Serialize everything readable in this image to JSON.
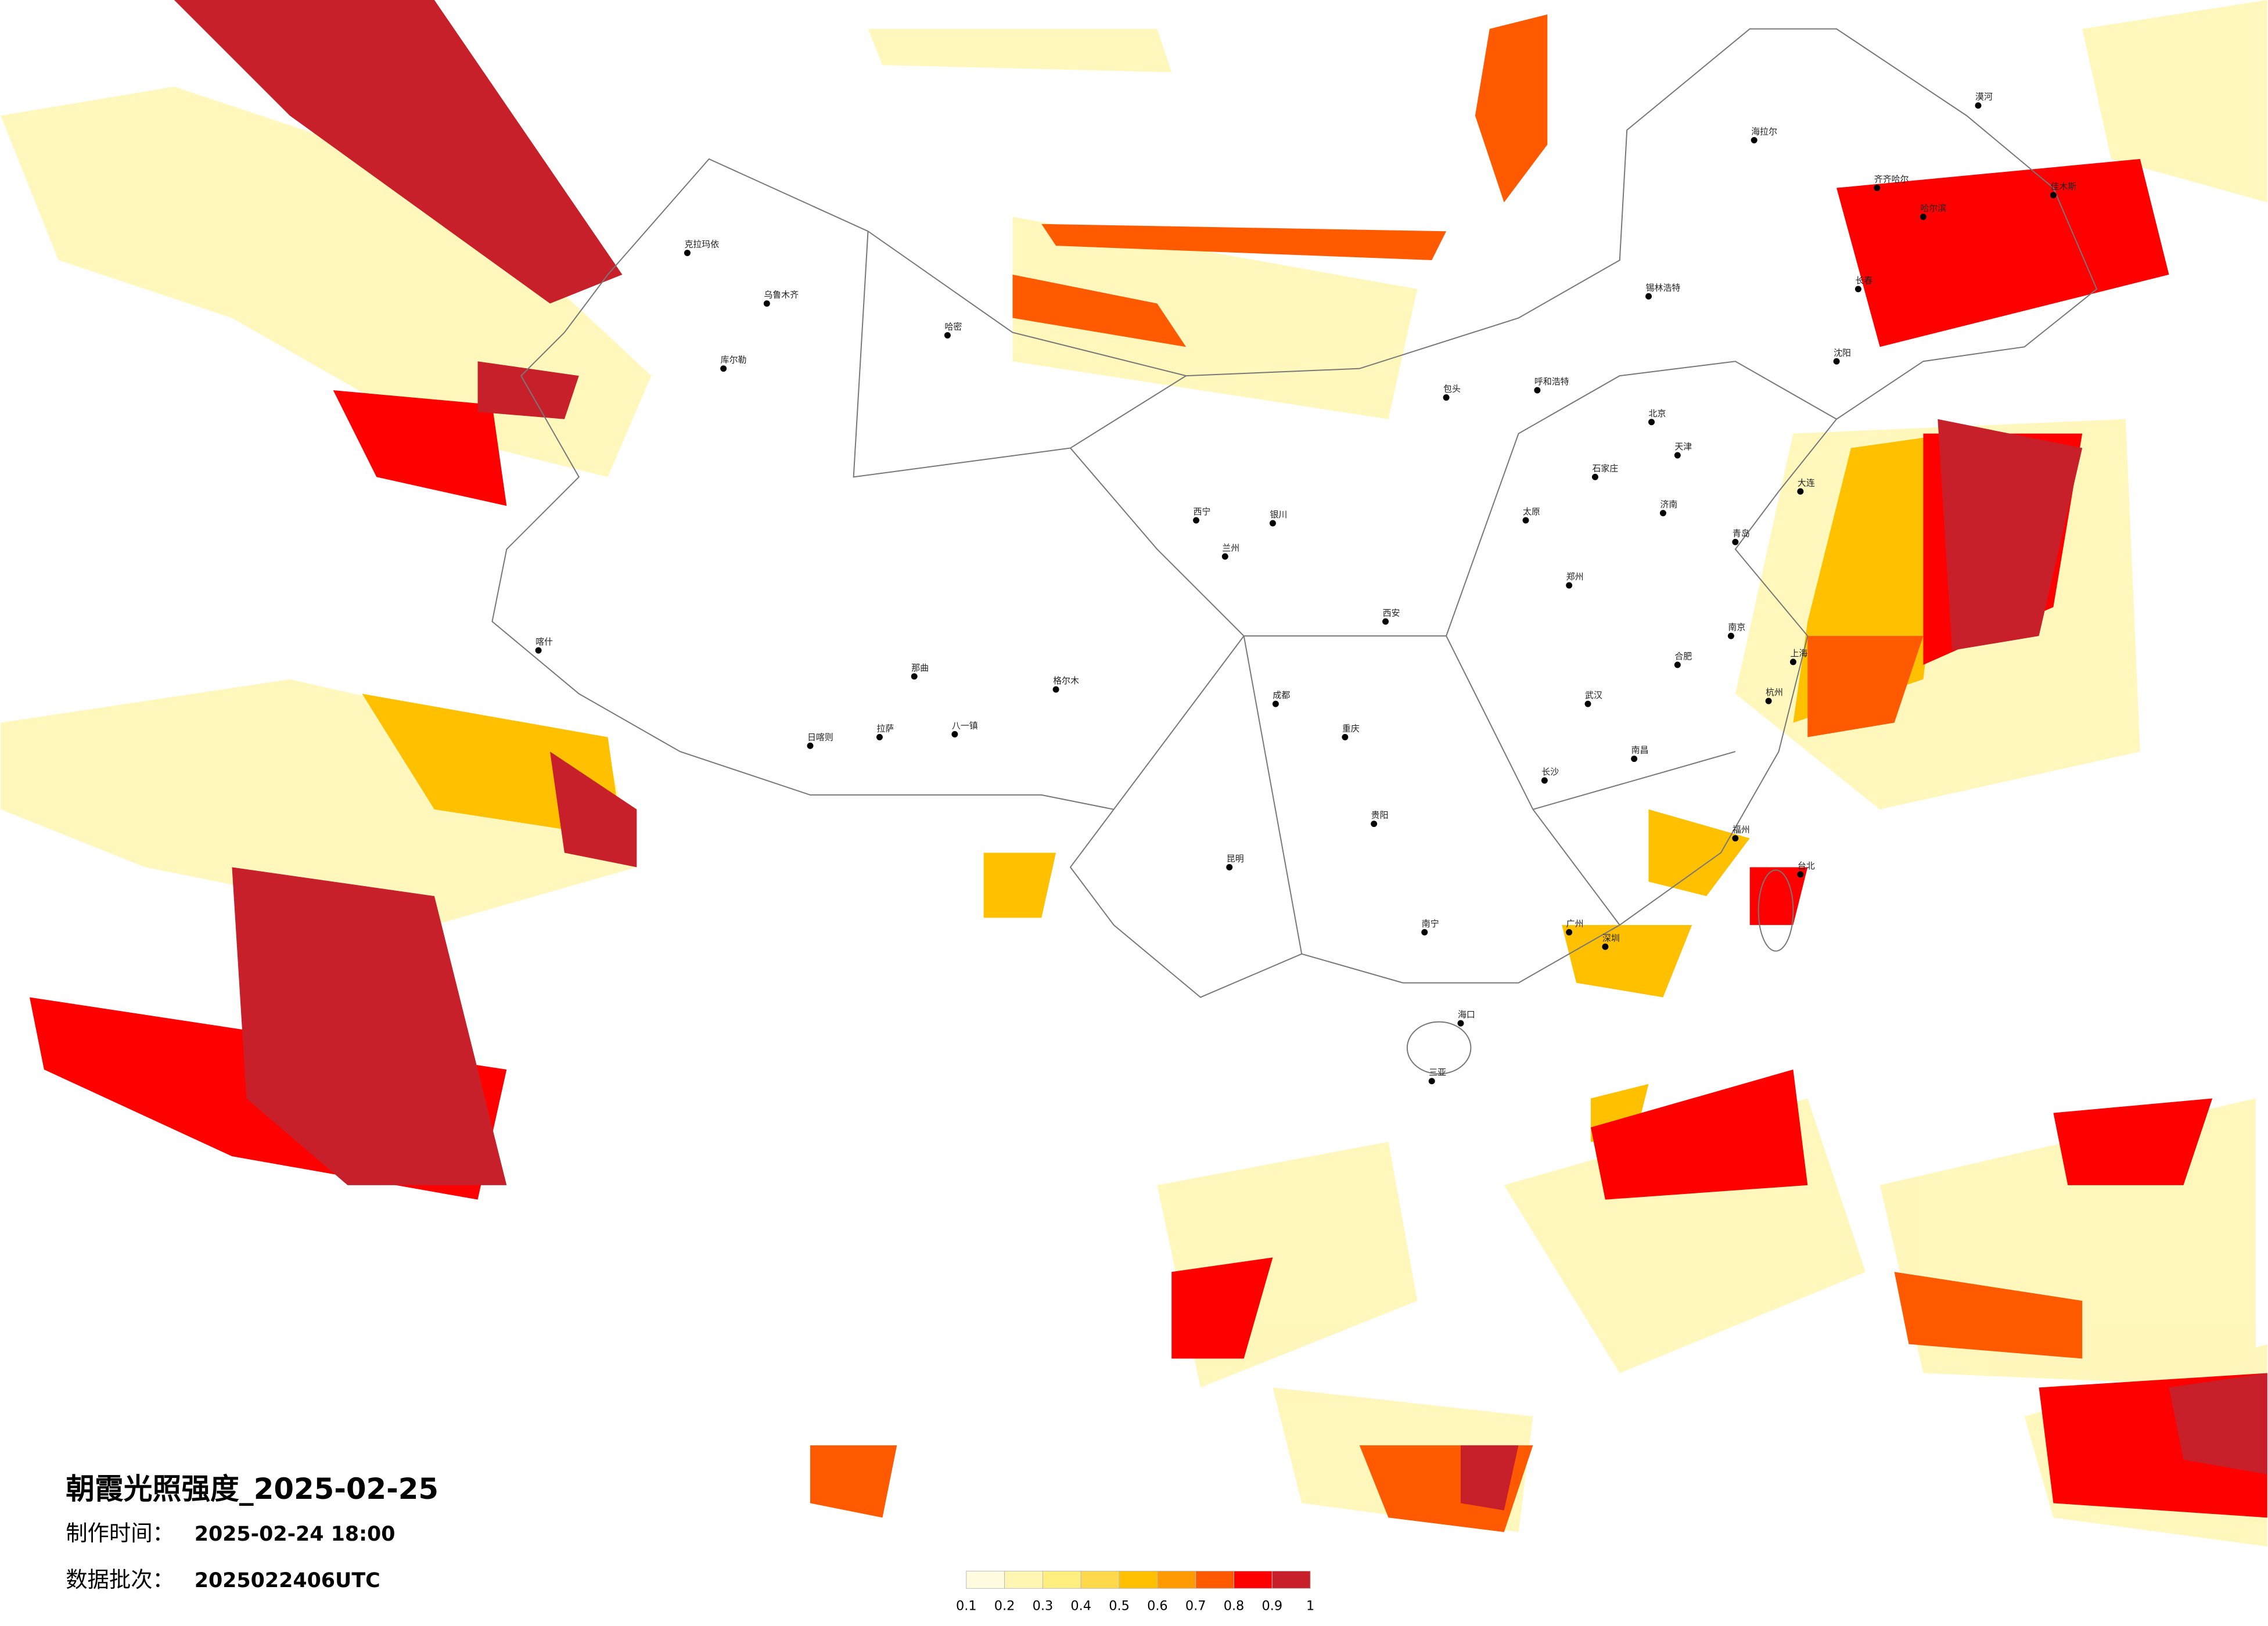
{
  "header": {
    "title": "朝霞光照强度_2025-02-25",
    "made_label": "制作时间：",
    "made_value": "2025-02-24 18:00",
    "batch_label": "数据批次：",
    "batch_value": "2025022406UTC"
  },
  "legend": {
    "ticks": [
      0.1,
      0.2,
      0.3,
      0.4,
      0.5,
      0.6,
      0.7,
      0.8,
      0.9,
      1
    ],
    "colors": [
      "#fffbe0",
      "#fff6b4",
      "#ffee80",
      "#ffd84c",
      "#ffc000",
      "#ff9a00",
      "#ff5a00",
      "#ff0000",
      "#c8202a"
    ]
  },
  "cities": [
    "克拉玛依",
    "乌鲁木齐",
    "哈密",
    "库尔勒",
    "喀什",
    "拉萨",
    "日喀则",
    "八一镇",
    "那曲",
    "格尔木",
    "西宁",
    "兰州",
    "银川",
    "呼和浩特",
    "包头",
    "北京",
    "天津",
    "石家庄",
    "太原",
    "西安",
    "郑州",
    "济南",
    "青岛",
    "南京",
    "上海",
    "杭州",
    "合肥",
    "武汉",
    "长沙",
    "南昌",
    "福州",
    "广州",
    "深圳",
    "南宁",
    "贵阳",
    "昆明",
    "成都",
    "重庆",
    "海口",
    "三亚",
    "台北",
    "哈尔滨",
    "长春",
    "沈阳",
    "大连",
    "漠河",
    "海拉尔",
    "齐齐哈尔",
    "锡林浩特",
    "佳木斯"
  ]
}
